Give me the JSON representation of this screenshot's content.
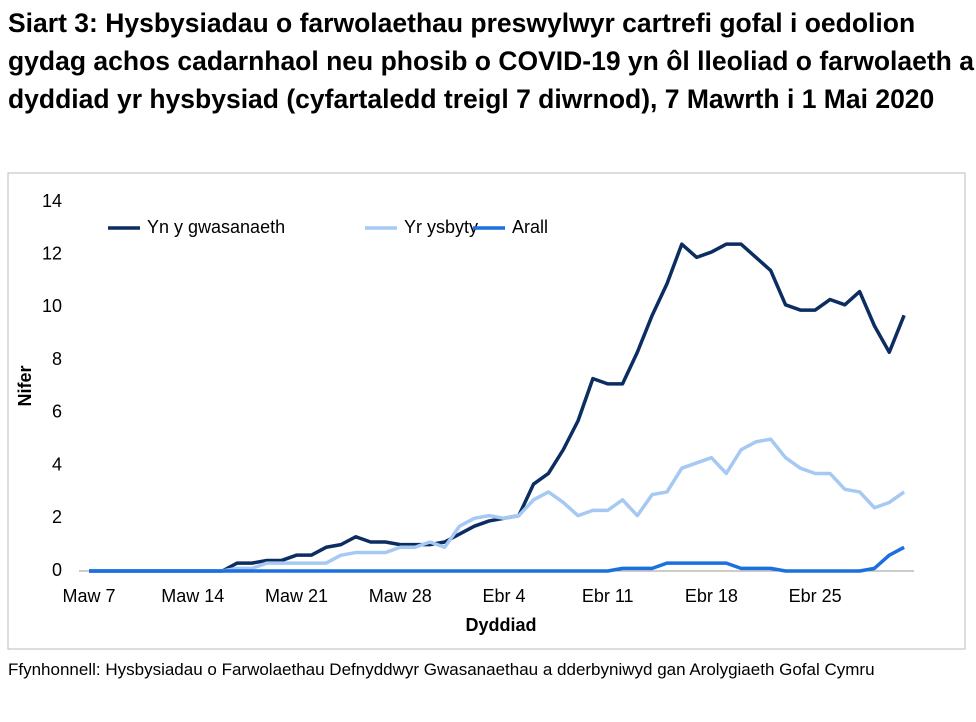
{
  "chart_data": {
    "type": "line",
    "title": "Siart 3: Hysbysiadau o farwolaethau preswylwyr cartrefi gofal i oedolion gydag achos cadarnhaol neu phosib o COVID-19 yn ôl lleoliad o farwolaeth a dyddiad yr hysbysiad (cyfartaledd treigl 7 diwrnod), 7 Mawrth i 1 Mai 2020",
    "x_label": "Dyddiad",
    "y_label": "Nifer",
    "source": "Ffynhonnell: Hysbysiadau o Farwolaethau Defnyddwyr Gwasanaethau a dderbyniwyd gan Arolygiaeth Gofal Cymru",
    "categories": [
      "Maw 7",
      null,
      null,
      null,
      null,
      null,
      null,
      "Maw 14",
      null,
      null,
      null,
      null,
      null,
      null,
      "Maw 21",
      null,
      null,
      null,
      null,
      null,
      null,
      "Maw 28",
      null,
      null,
      null,
      null,
      null,
      null,
      "Ebr 4",
      null,
      null,
      null,
      null,
      null,
      null,
      "Ebr 11",
      null,
      null,
      null,
      null,
      null,
      null,
      "Ebr 18",
      null,
      null,
      null,
      null,
      null,
      null,
      "Ebr 25",
      null,
      null,
      null,
      null,
      null,
      null
    ],
    "ylim": [
      0,
      14
    ],
    "yticks": [
      0,
      2,
      4,
      6,
      8,
      10,
      12,
      14
    ],
    "legend": "top-left",
    "series": [
      {
        "name": "Yn y gwasanaeth",
        "color": "#0c2d62",
        "values": [
          0,
          0,
          0,
          0,
          0,
          0,
          0,
          0,
          0,
          0,
          0.3,
          0.3,
          0.4,
          0.4,
          0.6,
          0.6,
          0.9,
          1.0,
          1.3,
          1.1,
          1.1,
          1.0,
          1.0,
          1.0,
          1.1,
          1.4,
          1.7,
          1.9,
          2.0,
          2.1,
          3.3,
          3.7,
          4.6,
          5.7,
          7.3,
          7.1,
          7.1,
          8.3,
          9.7,
          10.9,
          12.4,
          11.9,
          12.1,
          12.4,
          12.4,
          11.9,
          11.4,
          10.1,
          9.9,
          9.9,
          10.3,
          10.1,
          10.6,
          9.3,
          8.3,
          9.7
        ]
      },
      {
        "name": "Yr ysbyty",
        "color": "#a6c9f4",
        "values": [
          0,
          0,
          0,
          0,
          0,
          0,
          0,
          0,
          0,
          0,
          0.1,
          0.1,
          0.3,
          0.3,
          0.3,
          0.3,
          0.3,
          0.6,
          0.7,
          0.7,
          0.7,
          0.9,
          0.9,
          1.1,
          0.9,
          1.7,
          2.0,
          2.1,
          2.0,
          2.1,
          2.7,
          3.0,
          2.6,
          2.1,
          2.3,
          2.3,
          2.7,
          2.1,
          2.9,
          3.0,
          3.9,
          4.1,
          4.3,
          3.7,
          4.6,
          4.9,
          5.0,
          4.3,
          3.9,
          3.7,
          3.7,
          3.1,
          3.0,
          2.4,
          2.6,
          3.0
        ]
      },
      {
        "name": "Arall",
        "color": "#1b6fdf",
        "values": [
          0,
          0,
          0,
          0,
          0,
          0,
          0,
          0,
          0,
          0,
          0,
          0,
          0,
          0,
          0,
          0,
          0,
          0,
          0,
          0,
          0,
          0,
          0,
          0,
          0,
          0,
          0,
          0,
          0,
          0,
          0,
          0,
          0,
          0,
          0,
          0,
          0.1,
          0.1,
          0.1,
          0.3,
          0.3,
          0.3,
          0.3,
          0.3,
          0.1,
          0.1,
          0.1,
          0,
          0,
          0,
          0,
          0,
          0,
          0.1,
          0.6,
          0.9
        ]
      }
    ]
  }
}
